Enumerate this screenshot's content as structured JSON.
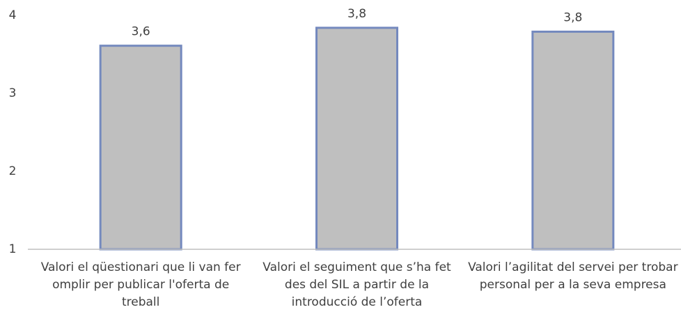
{
  "chart_data": {
    "type": "bar",
    "categories": [
      "Valori el qüestionari que li van fer omplir per publicar l'oferta de treball",
      "Valori el seguiment que s’ha fet des del SIL a partir de la introducció de l’oferta",
      "Valori  l’agilitat del servei per trobar personal per a la seva empresa"
    ],
    "values": [
      3.61,
      3.84,
      3.79
    ],
    "value_labels": [
      "3,6",
      "3,8",
      "3,8"
    ],
    "color": "#bfbfbf",
    "edge_color": "#7489be",
    "ylim": [
      1,
      4
    ],
    "yticks": [
      1,
      2,
      3,
      4
    ],
    "grid": false
  }
}
